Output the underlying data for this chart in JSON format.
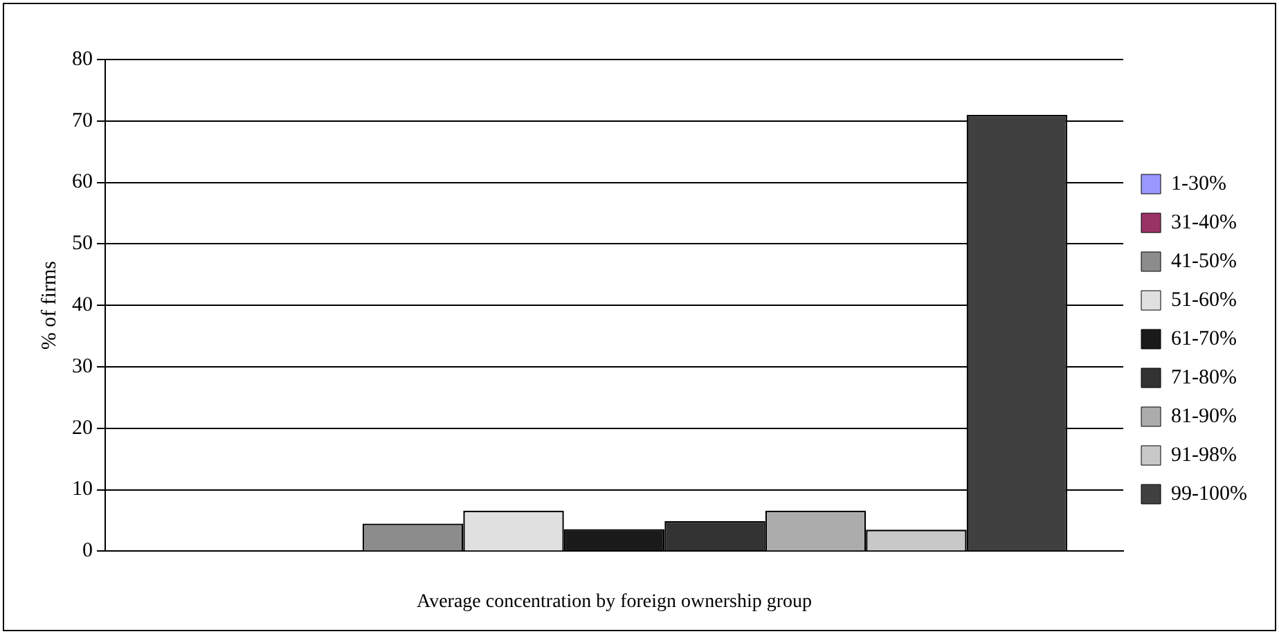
{
  "chart_data": {
    "type": "bar",
    "xlabel": "Average concentration by foreign ownership group",
    "ylabel": "% of firms",
    "categories": [
      null
    ],
    "series": [
      {
        "name": "1-30%",
        "color": "#9999ff",
        "values": [
          0
        ]
      },
      {
        "name": "31-40%",
        "color": "#993366",
        "values": [
          0
        ]
      },
      {
        "name": "41-50%",
        "color": "#8c8c8c",
        "values": [
          4.5
        ]
      },
      {
        "name": "51-60%",
        "color": "#e0e0e0",
        "values": [
          6.6
        ]
      },
      {
        "name": "61-70%",
        "color": "#1a1a1a",
        "values": [
          3.6
        ]
      },
      {
        "name": "71-80%",
        "color": "#333333",
        "values": [
          4.9
        ]
      },
      {
        "name": "81-90%",
        "color": "#acacac",
        "values": [
          6.6
        ]
      },
      {
        "name": "91-98%",
        "color": "#c8c8c8",
        "values": [
          3.5
        ]
      },
      {
        "name": "99-100%",
        "color": "#404040",
        "values": [
          71
        ]
      }
    ],
    "ylim": [
      0,
      80
    ],
    "yticks": [
      0,
      10,
      20,
      30,
      40,
      50,
      60,
      70,
      80
    ],
    "grid": "y",
    "legend": "right"
  }
}
